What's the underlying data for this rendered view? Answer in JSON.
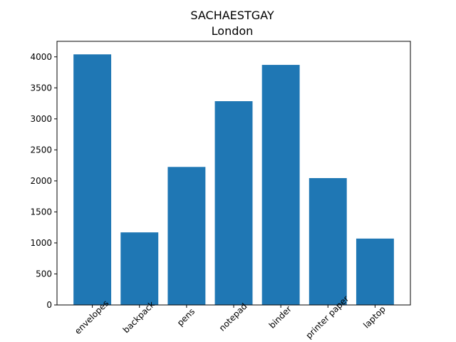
{
  "chart_data": {
    "type": "bar",
    "title": "SACHAESTGAY",
    "subtitle": "London",
    "xlabel": "",
    "ylabel": "",
    "categories": [
      "envelopes",
      "backpack",
      "pens",
      "notepad",
      "binder",
      "printer paper",
      "laptop"
    ],
    "values": [
      4040,
      1170,
      2225,
      3285,
      3870,
      2045,
      1070
    ],
    "ylim": [
      0,
      4250
    ],
    "yticks": [
      0,
      500,
      1000,
      1500,
      2000,
      2500,
      3000,
      3500,
      4000
    ],
    "bar_color": "#1f77b4",
    "grid": false,
    "legend": "none"
  }
}
